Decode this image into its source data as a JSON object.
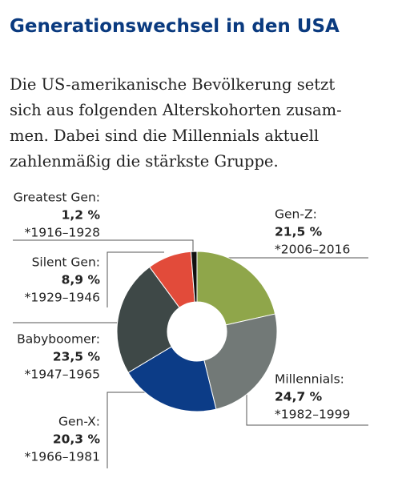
{
  "chart_data": {
    "type": "pie",
    "donut": true,
    "title": "Generationswechsel in den USA",
    "subtitle": [
      "Die US-amerikanische Bevölkerung setzt",
      "sich aus folgenden Alterskohorten zusam-",
      "men. Dabei sind die Millennials aktuell",
      "zahlenmäßig die stärkste Gruppe."
    ],
    "categories": [
      "Gen-Z:",
      "Millennials:",
      "Gen-X:",
      "Babyboomer:",
      "Silent Gen:",
      "Greatest Gen:"
    ],
    "values": [
      21.5,
      24.7,
      20.3,
      23.5,
      8.9,
      1.2
    ],
    "value_labels": [
      "21,5 %",
      "24,7 %",
      "20,3 %",
      "23,5 %",
      "8,9 %",
      "1,2 %"
    ],
    "periods": [
      "*2006–2016",
      "*1982–1999",
      "*1966–1981",
      "*1947–1965",
      "*1929–1946",
      "*1916–1928"
    ],
    "colors": [
      "#8fa64a",
      "#727977",
      "#0c3c87",
      "#3e4847",
      "#e24b3a",
      "#111111"
    ]
  }
}
